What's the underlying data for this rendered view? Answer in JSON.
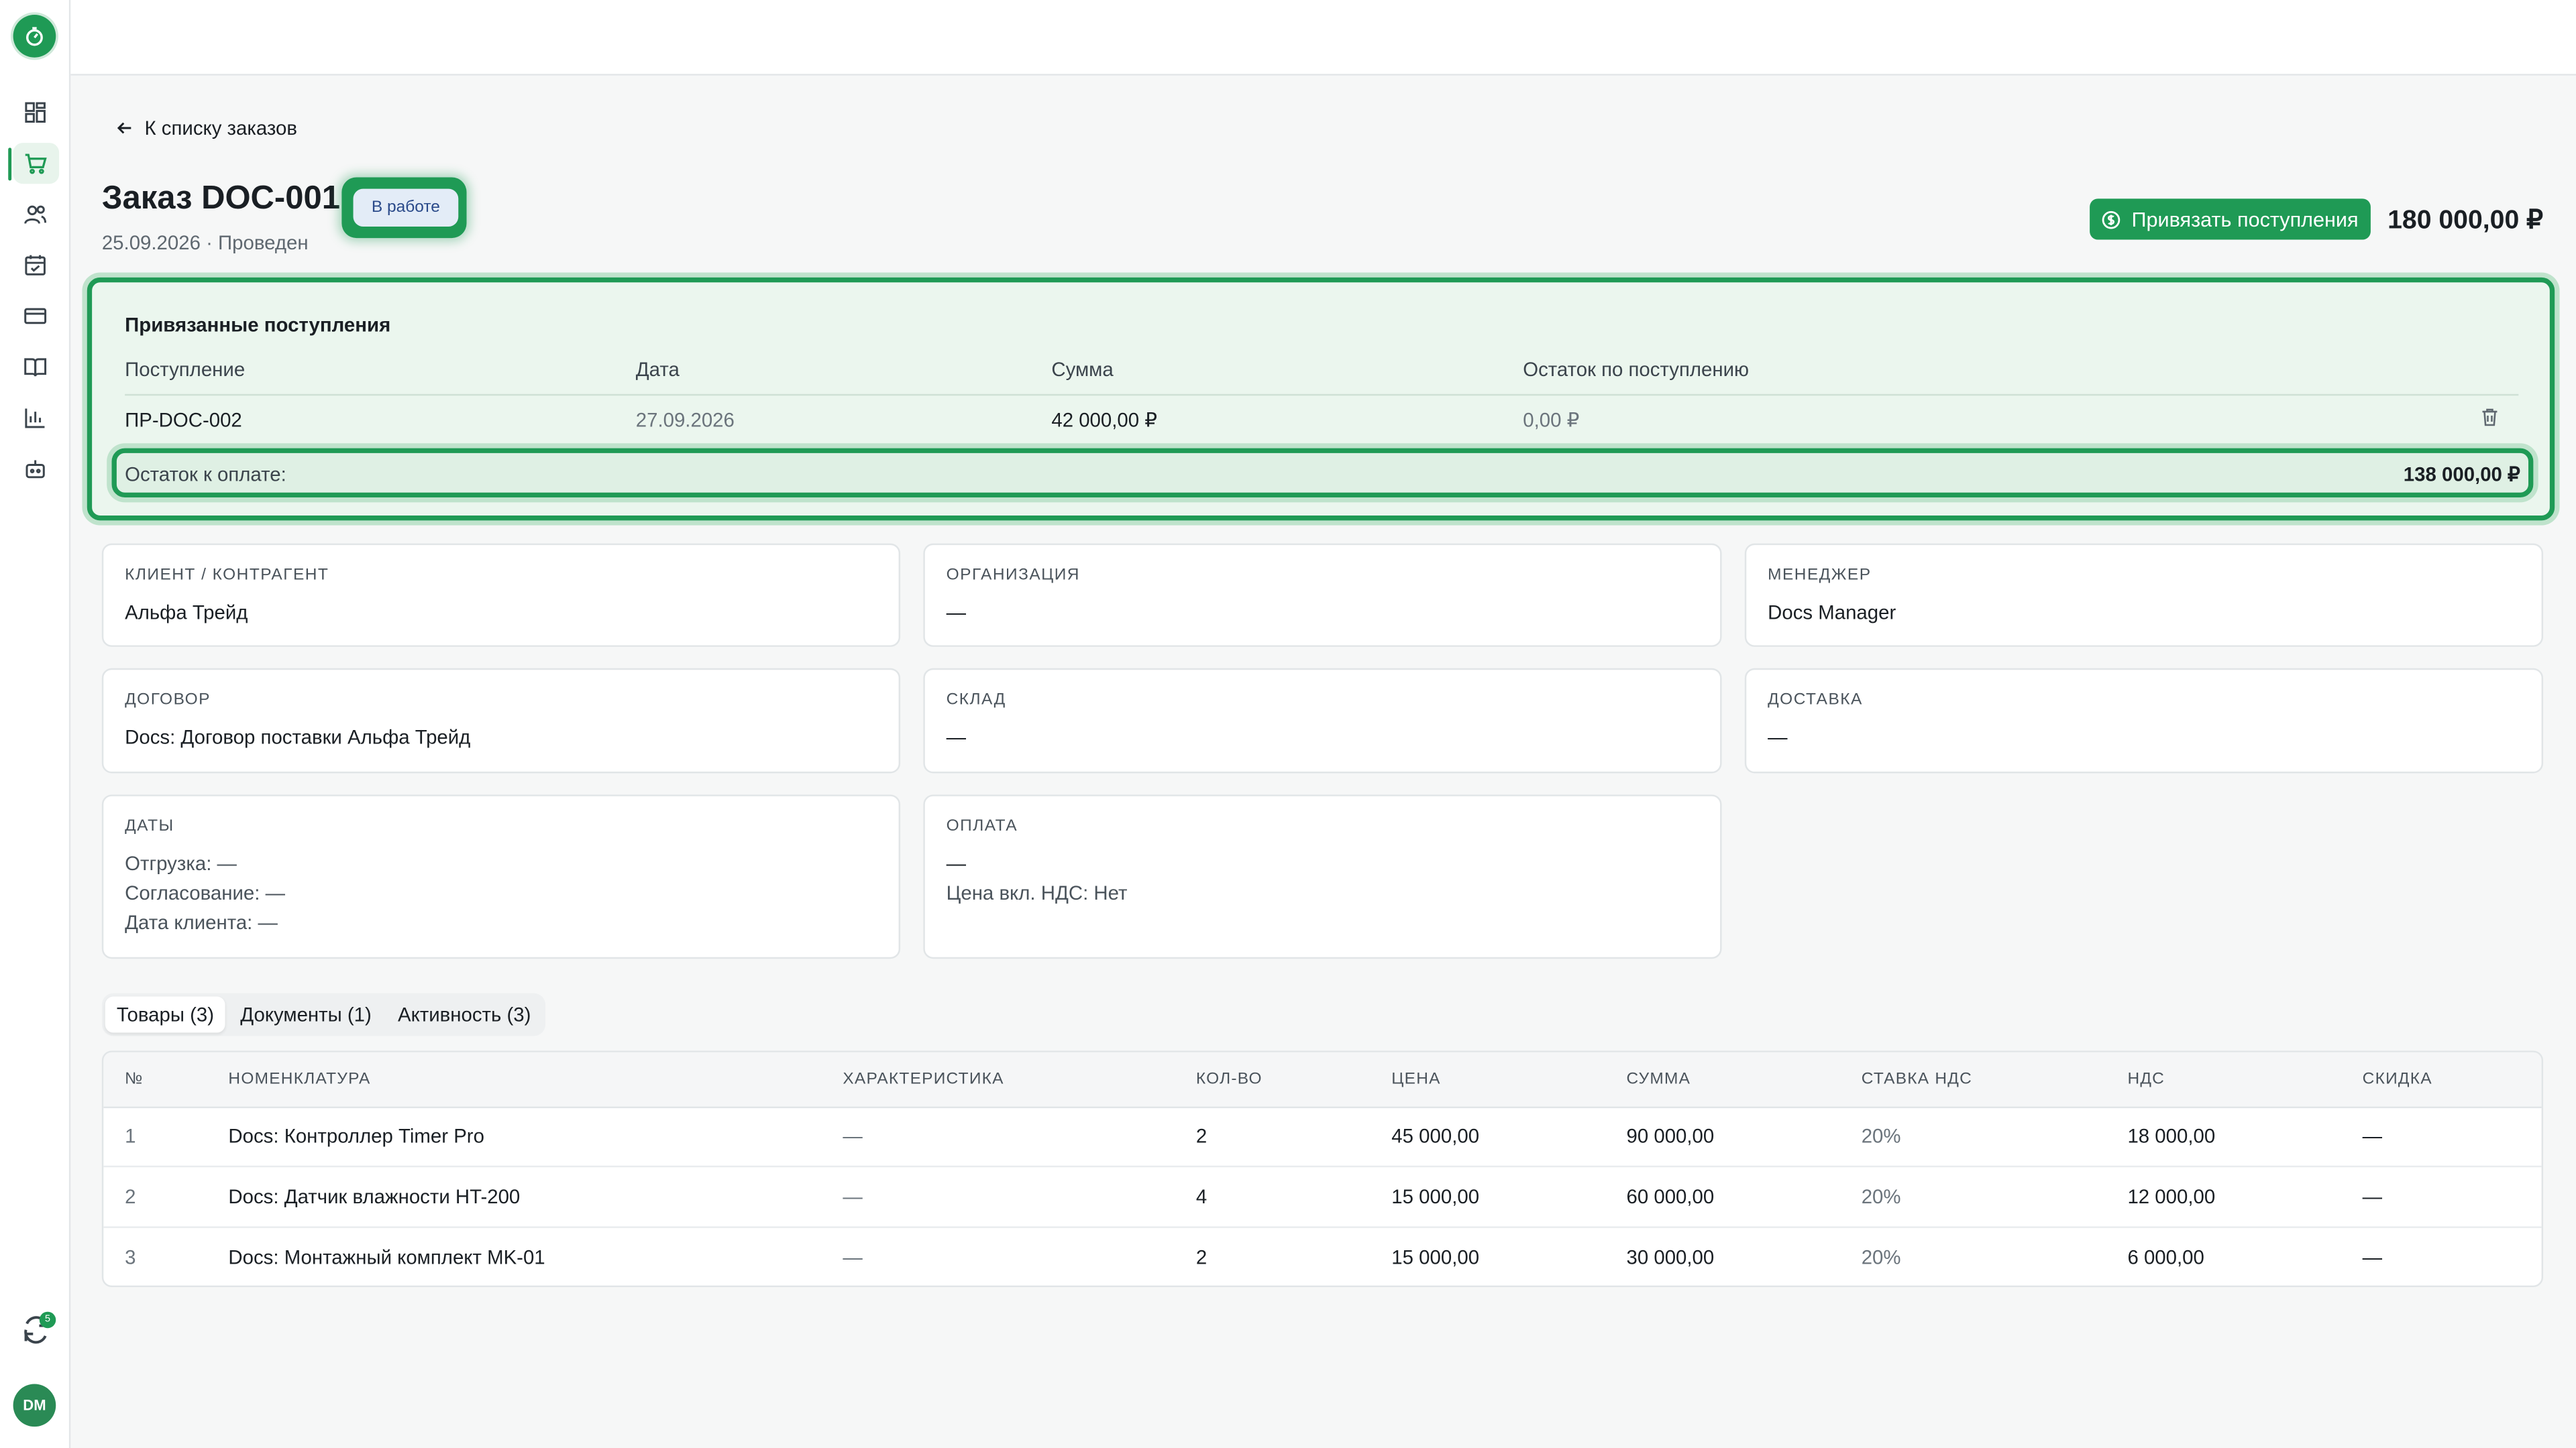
{
  "nav": {
    "items": [
      "dashboard",
      "orders",
      "clients",
      "calendar",
      "payments",
      "catalog",
      "reports",
      "automation"
    ],
    "sync_badge": "5",
    "avatar": "DM"
  },
  "header": {
    "back_label": "К списку заказов",
    "title": "Заказ DOC-001",
    "status": "В работе",
    "subtitle": "25.09.2026 · Проведен",
    "bind_button": "Привязать поступления",
    "total": "180 000,00 ₽"
  },
  "linked": {
    "title": "Привязанные поступления",
    "columns": [
      "Поступление",
      "Дата",
      "Сумма",
      "Остаток по поступлению"
    ],
    "rows": [
      {
        "doc": "ПР-DOC-002",
        "date": "27.09.2026",
        "sum": "42 000,00 ₽",
        "rest": "0,00 ₽"
      }
    ],
    "remain_label": "Остаток к оплате:",
    "remain_value": "138 000,00 ₽"
  },
  "cards": {
    "client": {
      "label": "Клиент / контрагент",
      "value": "Альфа Трейд"
    },
    "org": {
      "label": "Организация",
      "value": "—"
    },
    "manager": {
      "label": "Менеджер",
      "value": "Docs Manager"
    },
    "contract": {
      "label": "Договор",
      "value": "Docs: Договор поставки Альфа Трейд"
    },
    "warehouse": {
      "label": "Склад",
      "value": "—"
    },
    "delivery": {
      "label": "Доставка",
      "value": "—"
    },
    "dates": {
      "label": "Даты",
      "ship": "Отгрузка: —",
      "approve": "Согласование: —",
      "client_date": "Дата клиента: —"
    },
    "payment": {
      "label": "Оплата",
      "value": "—",
      "vat": "Цена вкл. НДС: Нет"
    }
  },
  "tabs": [
    "Товары (3)",
    "Документы (1)",
    "Активность (3)"
  ],
  "items": {
    "columns": [
      "№",
      "НОМЕНКЛАТУРА",
      "ХАРАКТЕРИСТИКА",
      "КОЛ-ВО",
      "ЦЕНА",
      "СУММА",
      "СТАВКА НДС",
      "НДС",
      "СКИДКА"
    ],
    "rows": [
      [
        "1",
        "Docs: Контроллер Timer Pro",
        "—",
        "2",
        "45 000,00",
        "90 000,00",
        "20%",
        "18 000,00",
        "—"
      ],
      [
        "2",
        "Docs: Датчик влажности HT-200",
        "—",
        "4",
        "15 000,00",
        "60 000,00",
        "20%",
        "12 000,00",
        "—"
      ],
      [
        "3",
        "Docs: Монтажный комплект MK-01",
        "—",
        "2",
        "15 000,00",
        "30 000,00",
        "20%",
        "6 000,00",
        "—"
      ]
    ]
  },
  "colors": {
    "accent": "#1f9a55",
    "status_bg": "#e3ecf7"
  }
}
